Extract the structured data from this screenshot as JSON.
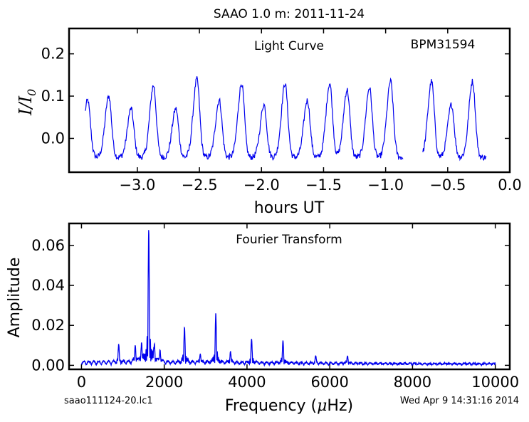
{
  "title": "SAAO 1.0 m:  2011-11-24",
  "footer_left": "saao111124-20.lc1",
  "footer_right": "Wed Apr  9 14:31:16 2014",
  "colors": {
    "line": "#0000ee",
    "axes": "#000000",
    "background": "#ffffff"
  },
  "chart_data": [
    {
      "type": "line",
      "panel": "top",
      "annotation": "Light Curve",
      "object_label": "BPM31594",
      "xlabel": "hours UT",
      "ylabel": "I/I0",
      "ylabel_main": "I/I",
      "ylabel_sub": "0",
      "xlim": [
        -3.55,
        0.0
      ],
      "ylim": [
        -0.08,
        0.26
      ],
      "xticks": [
        -3.0,
        -2.5,
        -2.0,
        -1.5,
        -1.0,
        -0.5,
        0.0
      ],
      "xtick_labels": [
        "−3.0",
        "−2.5",
        "−2.0",
        "−1.5",
        "−1.0",
        "−0.5",
        "0.0"
      ],
      "yticks": [
        0.0,
        0.1,
        0.2
      ],
      "ytick_labels": [
        "0.0",
        "0.1",
        "0.2"
      ],
      "grid": false,
      "pulses": [
        {
          "t": -3.4,
          "a": 0.09
        },
        {
          "t": -3.23,
          "a": 0.1
        },
        {
          "t": -3.05,
          "a": 0.07
        },
        {
          "t": -2.87,
          "a": 0.125
        },
        {
          "t": -2.69,
          "a": 0.07
        },
        {
          "t": -2.52,
          "a": 0.14
        },
        {
          "t": -2.34,
          "a": 0.09
        },
        {
          "t": -2.16,
          "a": 0.13
        },
        {
          "t": -1.98,
          "a": 0.08
        },
        {
          "t": -1.81,
          "a": 0.13
        },
        {
          "t": -1.63,
          "a": 0.09
        },
        {
          "t": -1.45,
          "a": 0.13
        },
        {
          "t": -1.31,
          "a": 0.115
        },
        {
          "t": -1.13,
          "a": 0.12
        },
        {
          "t": -0.96,
          "a": 0.135
        },
        {
          "t": -0.63,
          "a": 0.135
        },
        {
          "t": -0.47,
          "a": 0.08
        },
        {
          "t": -0.3,
          "a": 0.135
        }
      ],
      "segments": [
        [
          -3.42,
          -0.86
        ],
        [
          -0.7,
          -0.19
        ]
      ],
      "baseline": -0.045
    },
    {
      "type": "line",
      "panel": "bottom",
      "annotation": "Fourier Transform",
      "xlabel": "Frequency (μHz)",
      "xlabel_pre": "Frequency (",
      "xlabel_mu": "μ",
      "xlabel_post": "Hz)",
      "ylabel": "Amplitude",
      "xlim": [
        -300,
        10350
      ],
      "ylim": [
        -0.002,
        0.071
      ],
      "xticks": [
        0,
        2000,
        4000,
        6000,
        8000,
        10000
      ],
      "xtick_labels": [
        "0",
        "2000",
        "4000",
        "6000",
        "8000",
        "10000"
      ],
      "yticks": [
        0.0,
        0.02,
        0.04,
        0.06
      ],
      "ytick_labels": [
        "0.00",
        "0.02",
        "0.04",
        "0.06"
      ],
      "grid": false,
      "peaks": [
        {
          "f": 1625,
          "a": 0.066
        },
        {
          "f": 3245,
          "a": 0.025
        },
        {
          "f": 2490,
          "a": 0.018
        },
        {
          "f": 4870,
          "a": 0.0115
        },
        {
          "f": 4110,
          "a": 0.0115
        },
        {
          "f": 900,
          "a": 0.0085
        },
        {
          "f": 1300,
          "a": 0.0085
        },
        {
          "f": 1450,
          "a": 0.009
        },
        {
          "f": 1760,
          "a": 0.0075
        },
        {
          "f": 1900,
          "a": 0.006
        },
        {
          "f": 2870,
          "a": 0.005
        },
        {
          "f": 3600,
          "a": 0.006
        },
        {
          "f": 5660,
          "a": 0.0035
        },
        {
          "f": 6430,
          "a": 0.004
        }
      ],
      "frange": [
        0,
        10000
      ]
    }
  ]
}
